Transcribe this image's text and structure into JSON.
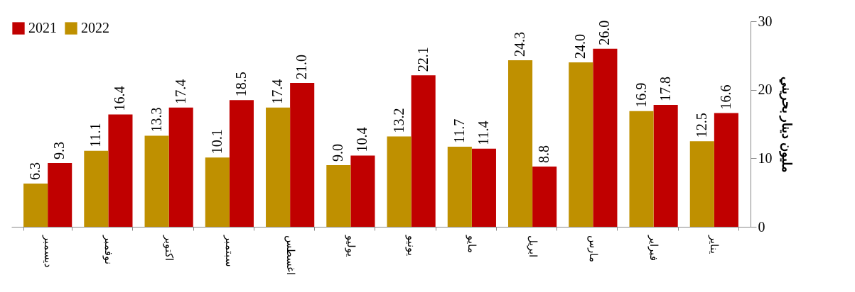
{
  "chart_data": {
    "type": "bar",
    "ylabel": "مليون دينار بحريني",
    "categories": [
      "ديسمبر",
      "نوفمبر",
      "اكتوبر",
      "سبتمبر",
      "اغسطس",
      "يوليو",
      "يونيو",
      "مايو",
      "ابريل",
      "مارس",
      "فبراير",
      "يناير"
    ],
    "series": [
      {
        "name": "2021",
        "color": "#c00000",
        "values": [
          9.3,
          16.4,
          17.4,
          18.5,
          21.0,
          10.4,
          22.1,
          11.4,
          8.8,
          26.0,
          17.8,
          16.6
        ],
        "value_labels": [
          "9.3",
          "16.4",
          "17.4",
          "18.5",
          "21.0",
          "10.4",
          "22.1",
          "11.4",
          "8.8",
          "26.0",
          "17.8",
          "16.6"
        ]
      },
      {
        "name": "2022",
        "color": "#bf9000",
        "values": [
          6.3,
          11.1,
          13.3,
          10.1,
          17.4,
          9.0,
          13.2,
          11.7,
          24.3,
          24.0,
          16.9,
          12.5
        ],
        "value_labels": [
          "6.3",
          "11.1",
          "13.3",
          "10.1",
          "17.4",
          "9.0",
          "13.2",
          "11.7",
          "24.3",
          "24.0",
          "16.9",
          "12.5"
        ]
      }
    ],
    "ylim": [
      0,
      30
    ],
    "yticks": [
      0,
      10,
      20,
      30
    ],
    "grid": false,
    "legend": "top left"
  }
}
